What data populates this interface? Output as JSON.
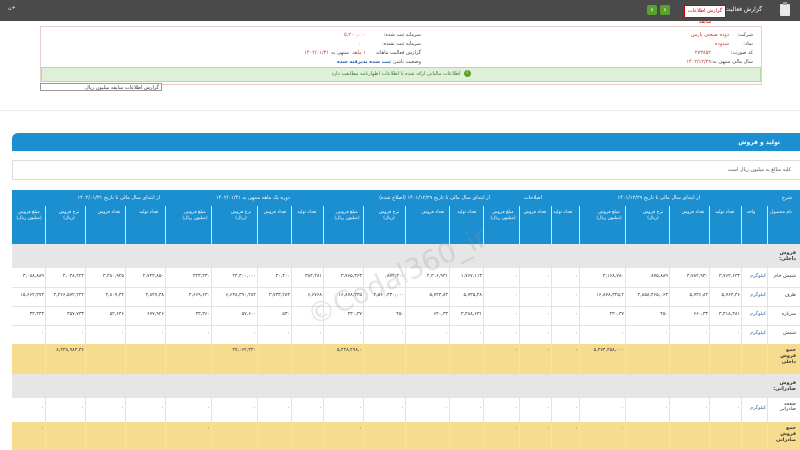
{
  "topbar": {
    "title": "گزارش فعالیت ماهانه",
    "badge": "گزارش اطلاعات سابقه",
    "corner": "+ن",
    "prev_icon": "chevron-right-icon",
    "next_icon": "chevron-left-icon"
  },
  "info": {
    "company_label": "شرکت:",
    "company_value": "دوده صنعتی پارس",
    "symbol_label": "نماد:",
    "symbol_value": "شدوده",
    "code_label": "کد صورت:",
    "code_value": "۲۷۳۸۵۲",
    "period_label": "سال مالی منتهی به:",
    "period_value": "۱۴۰۲/۱۲/۲۹",
    "capital_label": "سرمایه ثبت شده:",
    "capital_value": "۵,۲۰۰,۰۰۰",
    "unreg_capital_label": "سرمایه ثبت نشده:",
    "unreg_capital_value": "۰",
    "report_label": "گزارش فعالیت ماهانه",
    "report_period": "۱ ماهه",
    "report_end": "منتهی به",
    "report_date": "۱۴۰۲/۰۱/۳۱",
    "status_label": "وضعیت ناشر:",
    "status_value": "ثبت شده پذیرفته شده",
    "green_notice": "اطلاعات مالیاتی ارائه شده با اطلاعات اظهارنامه مطابقت دارد",
    "select_value": "گزارش اطلاعات سابقه میلیون ریال"
  },
  "section": {
    "title": "تولید و فروش",
    "note": "کلیه مبالغ به میلیون ریال است"
  },
  "table": {
    "group_headers": [
      "شرح",
      "از ابتدای سال مالی تا تاریخ ۱۴۰۱/۱۲/۲۹",
      "اصلاحات",
      "از ابتدای سال مالی تا تاریخ ۱۴۰۱/۱۲/۲۹ (اصلاح شده)",
      "دوره یک ماهه منتهی به ۱۴۰۲/۰۱/۳۱",
      "از ابتدای سال مالی تا تاریخ ۱۴۰۲/۰۱/۳۱"
    ],
    "columns": [
      "نام محصول",
      "واحد",
      "تعداد تولید",
      "تعداد فروش",
      "نرخ فروش (ریال)",
      "مبلغ فروش (میلیون ریال)",
      "تعداد تولید",
      "تعداد فروش",
      "مبلغ فروش (میلیون ریال)",
      "تعداد تولید",
      "تعداد فروش",
      "نرخ فروش (ریال)",
      "مبلغ فروش (میلیون ریال)",
      "تعداد تولید",
      "تعداد فروش",
      "نرخ فروش (ریال)",
      "مبلغ فروش (میلیون ریال)",
      "تعداد تولید",
      "تعداد فروش",
      "نرخ فروش (ریال)",
      "مبلغ فروش (میلیون ریال)"
    ],
    "group1": "فروش داخلی:",
    "group2": "فروش صادراتی:",
    "rows": [
      [
        "شمش خام",
        "کیلوگرم",
        "۳,۷۶۳,۶۳۳",
        "۴,۷۸۲,۹۳۰",
        "۸۷۵,۸۸۹",
        "۳,۱۶۸,۷۸۰",
        "۰",
        "۰",
        "۰",
        "۱,۷۶۷,۱۱۳",
        "۴,۳۰۶,۹۳۱",
        "۸۷۲,۳۰۰",
        "۳,۷۶۵,۳۶۳",
        "۳۸۴,۳۸۱",
        "۴۰,۴۰۰",
        "۲۴,۳۰۰,۰۰۰",
        "۳۴۳,۳۳۰",
        "۲,۷۲۳,۸۵۰",
        "۳,۴۸۰,۹۲۵",
        "۲,۰۳۸,۴۲۲",
        "۳,۰۸۸,۸۸۹"
      ],
      [
        "ظرف",
        "کیلوگرم",
        "۵,۷۶۳,۴۶",
        "۵,۷۳۶,۸۳",
        "۲,۸۵۸,۴۶۵,۰۶۳",
        "۱۶,۸۷۸,۳۲۵,۲",
        "۰",
        "۰",
        "۰",
        "۵,۷۳۵,۴۸",
        "۵,۷۴۴,۸۳",
        "۲,۵۶۰,۴۳۰,۰۰۰",
        "۱۶,۸۷۸,۳۳۵",
        "۶,۶۷۶۸",
        "۳,۷۳۳,۲۸۳",
        "۶,۶۳۸,۳۹۰,۴۸۲",
        "۴,۶۶۹,۶۳۰",
        "۴,۸۴۷,۳۸",
        "۴,۸۰۷,۴۴",
        "۴,۳۶۶,۵۷۲,۲۲۲",
        "۱۵,۶۶۲,۳۷۳"
      ],
      [
        "سرباره",
        "کیلوگرم",
        "۳,۴۱۸,۴۸۱",
        "۶۶۰,۳۳",
        "۴۵۰",
        "۲۳۰,۳۷",
        "۰",
        "۰",
        "۰",
        "۳,۴۸۸,۶۳۱",
        "۶۴۰,۳۳",
        "۴۵۰",
        "۲۳۰,۳۷",
        "۰",
        "۵۳۰",
        "۵۷,۶۰۰",
        "۳۳,۳۶۰",
        "۶۷۷,۹۲۶",
        "۵۲,۶۴۶",
        "۳۵۷,۷۳۳",
        "۳۳,۳۴۳"
      ],
      [
        "شمش",
        "کیلوگرم",
        "۰",
        "۰",
        "۰",
        "۰",
        "۰",
        "۰",
        "۰",
        "۰",
        "۰",
        "۰",
        "۰",
        "۰",
        "۰",
        "۰",
        "۰",
        "۰",
        "۰",
        "۰",
        "۰"
      ]
    ],
    "sum1": [
      "جمع فروش داخلی",
      "",
      "",
      "",
      "",
      "۵,۴۷۴,۴۵۸,۰۰۰",
      "۰",
      "۰",
      "۰",
      "",
      "",
      "",
      "۵,۴۳۸,۴۹۸,۰",
      "",
      "",
      "۲۷,۰۶۲,۳۳۰",
      "",
      "",
      "",
      "۸,۴۳۸,۹۸۳,۳۶"
    ],
    "sum1b": [
      "",
      "",
      "۲۱,۸۸۸,۸۸۶",
      "",
      "",
      "۴,۳۷۳,۳۴۸,۰۶",
      "۰",
      "۰",
      "۰",
      "",
      "۱۳۵,۳۵۹,۲۶",
      "",
      "",
      "۱,۵۶۰,۶۳۷,۳",
      "",
      "۳,۸۳۳,۶۸۰",
      "",
      ""
    ],
    "export_row": [
      "صفحه صادراتی",
      "کیلوگرم",
      "۰",
      "۰",
      "۰",
      "۰",
      "۰",
      "۰",
      "۰",
      "۰",
      "۰",
      "۰",
      "۰",
      "۰",
      "۰",
      "۰",
      "۰",
      "۰",
      "۰",
      "۰",
      "۰"
    ],
    "sum2": [
      "جمع فروش صادراتی",
      "",
      "",
      "",
      "",
      "۰",
      "۰",
      "۰",
      "۰",
      "",
      "",
      "",
      "۰",
      "",
      "",
      "",
      "۰",
      "",
      "",
      "",
      "۰"
    ]
  },
  "watermark": "©Codal360_ir"
}
